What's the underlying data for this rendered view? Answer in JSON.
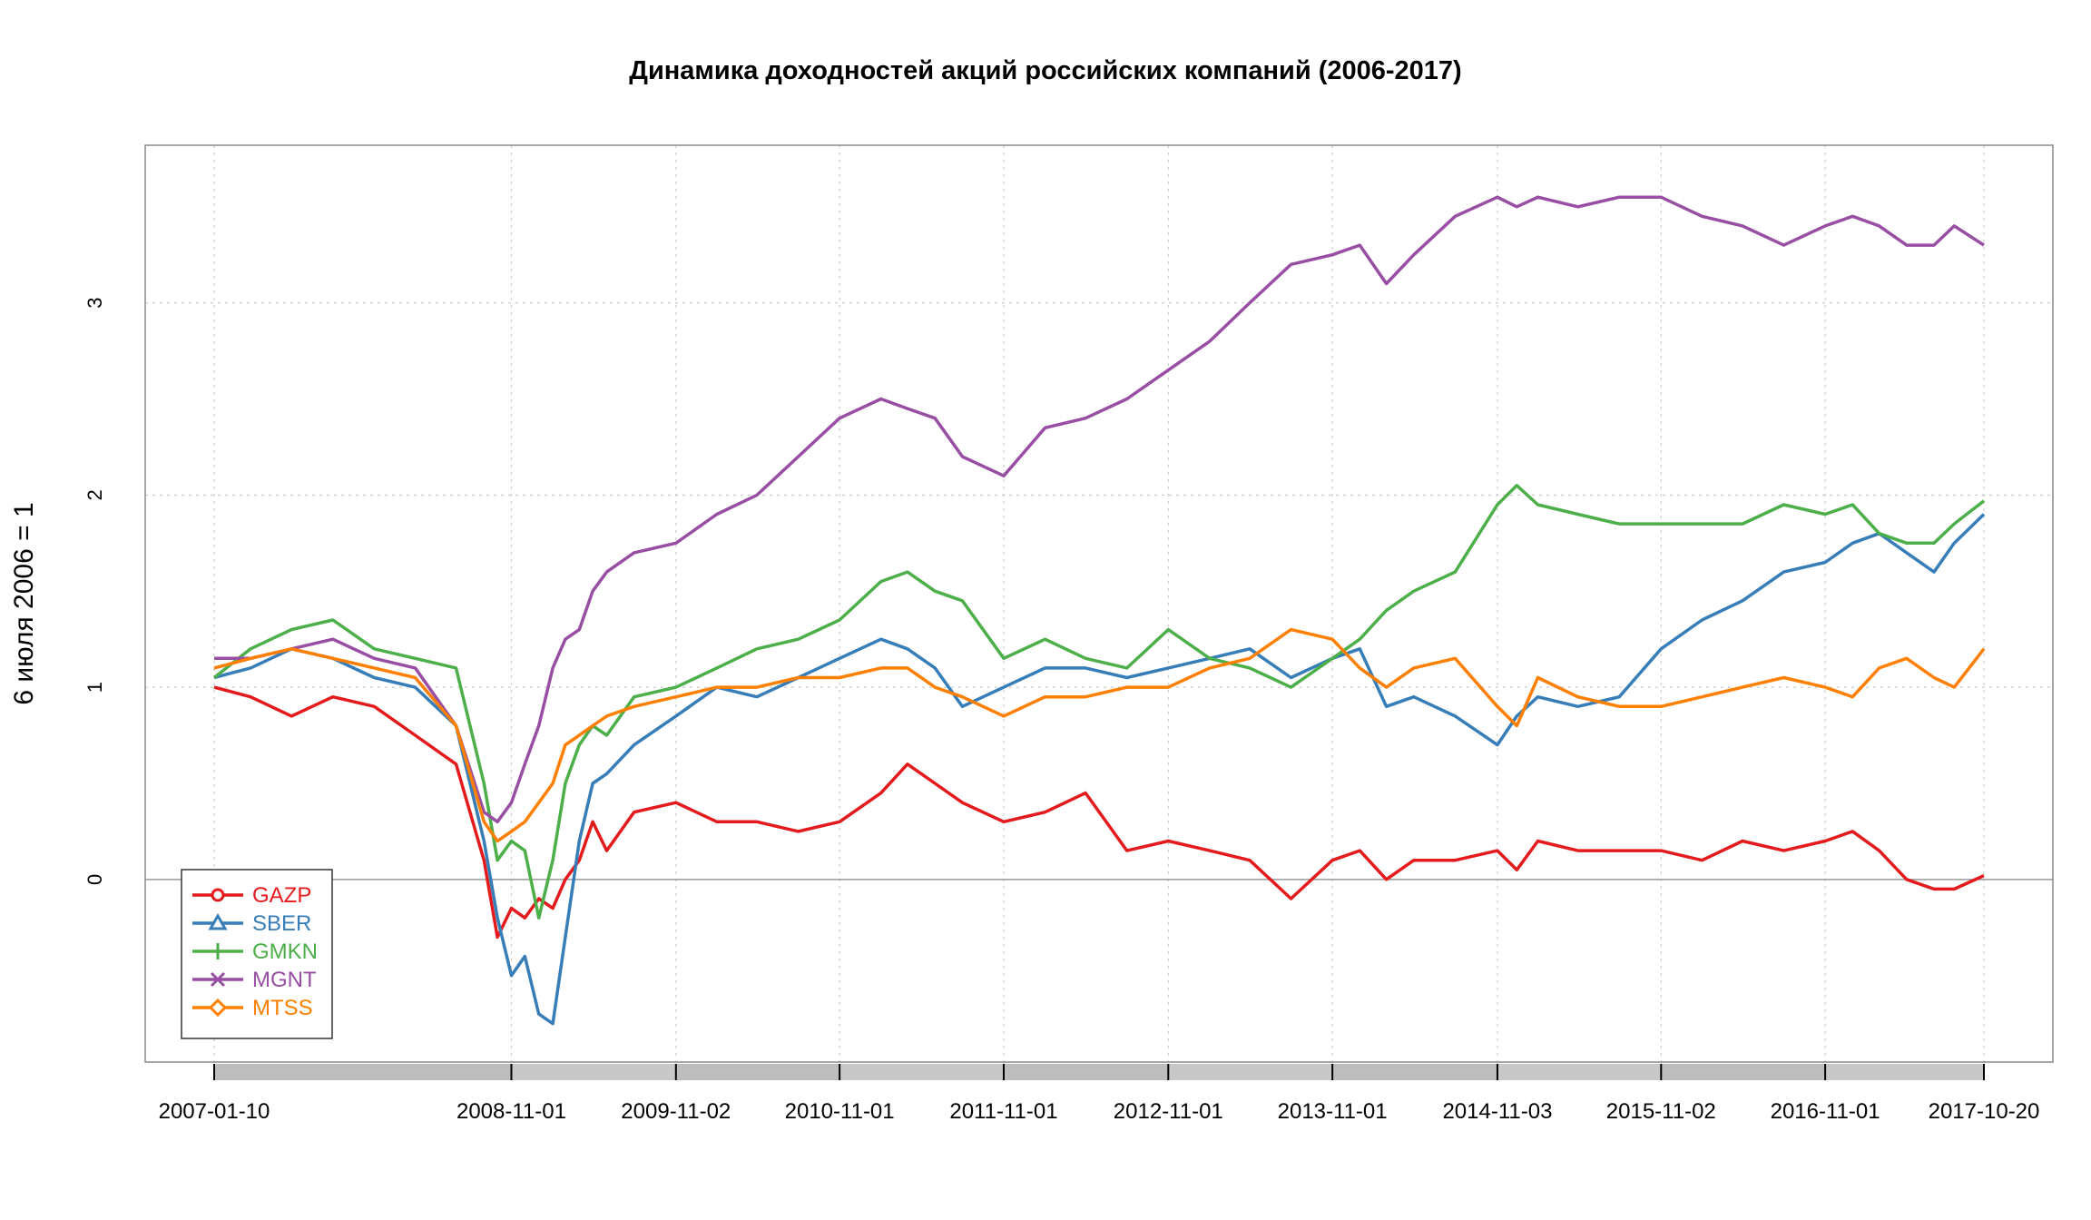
{
  "chart_data": {
    "type": "line",
    "title": "Динамика доходностей акций российских компаний (2006-2017)",
    "xlabel": "",
    "ylabel": "6 июля 2006  = 1",
    "x_tick_labels": [
      "2007-01-10",
      "2008-11-01",
      "2009-11-02",
      "2010-11-01",
      "2011-11-01",
      "2012-11-01",
      "2013-11-01",
      "2014-11-03",
      "2015-11-02",
      "2016-11-01",
      "2017-10-20"
    ],
    "y_ticks": [
      0,
      1,
      2,
      3
    ],
    "ylim": [
      -0.95,
      3.82
    ],
    "xlim": [
      "2007-01-10",
      "2017-10-20"
    ],
    "grid": true,
    "legend_position": "bottom-left",
    "x": [
      "2007-01-10",
      "2007-04-01",
      "2007-07-01",
      "2007-10-01",
      "2008-01-01",
      "2008-04-01",
      "2008-07-01",
      "2008-09-01",
      "2008-10-01",
      "2008-11-01",
      "2008-12-01",
      "2009-01-01",
      "2009-02-01",
      "2009-03-01",
      "2009-04-01",
      "2009-05-01",
      "2009-06-01",
      "2009-08-01",
      "2009-11-02",
      "2010-02-01",
      "2010-05-01",
      "2010-08-01",
      "2010-11-01",
      "2011-02-01",
      "2011-04-01",
      "2011-06-01",
      "2011-08-01",
      "2011-11-01",
      "2012-02-01",
      "2012-05-01",
      "2012-08-01",
      "2012-11-01",
      "2013-02-01",
      "2013-05-01",
      "2013-08-01",
      "2013-11-01",
      "2014-01-01",
      "2014-03-01",
      "2014-05-01",
      "2014-08-01",
      "2014-11-03",
      "2014-12-16",
      "2015-02-01",
      "2015-05-01",
      "2015-08-01",
      "2015-11-02",
      "2016-02-01",
      "2016-05-01",
      "2016-08-01",
      "2016-11-01",
      "2017-01-01",
      "2017-03-01",
      "2017-05-01",
      "2017-07-01",
      "2017-08-15",
      "2017-10-20"
    ],
    "series": [
      {
        "name": "GAZP",
        "color": "#e41a1c",
        "marker": "circle",
        "values": [
          1.0,
          0.95,
          0.85,
          0.95,
          0.9,
          0.75,
          0.6,
          0.1,
          -0.3,
          -0.15,
          -0.2,
          -0.1,
          -0.15,
          0.0,
          0.1,
          0.3,
          0.15,
          0.35,
          0.4,
          0.3,
          0.3,
          0.25,
          0.3,
          0.45,
          0.6,
          0.5,
          0.4,
          0.3,
          0.35,
          0.45,
          0.15,
          0.2,
          0.15,
          0.1,
          -0.1,
          0.1,
          0.15,
          0.0,
          0.1,
          0.1,
          0.15,
          0.05,
          0.2,
          0.15,
          0.15,
          0.15,
          0.1,
          0.2,
          0.15,
          0.2,
          0.25,
          0.15,
          0.0,
          -0.05,
          -0.05,
          0.02
        ]
      },
      {
        "name": "SBER",
        "color": "#377eb8",
        "marker": "triangle",
        "values": [
          1.05,
          1.1,
          1.2,
          1.15,
          1.05,
          1.0,
          0.8,
          0.2,
          -0.2,
          -0.5,
          -0.4,
          -0.7,
          -0.75,
          -0.3,
          0.2,
          0.5,
          0.55,
          0.7,
          0.85,
          1.0,
          0.95,
          1.05,
          1.15,
          1.25,
          1.2,
          1.1,
          0.9,
          1.0,
          1.1,
          1.1,
          1.05,
          1.1,
          1.15,
          1.2,
          1.05,
          1.15,
          1.2,
          0.9,
          0.95,
          0.85,
          0.7,
          0.85,
          0.95,
          0.9,
          0.95,
          1.2,
          1.35,
          1.45,
          1.6,
          1.65,
          1.75,
          1.8,
          1.7,
          1.6,
          1.75,
          1.9
        ]
      },
      {
        "name": "GMKN",
        "color": "#4daf4a",
        "marker": "plus",
        "values": [
          1.05,
          1.2,
          1.3,
          1.35,
          1.2,
          1.15,
          1.1,
          0.5,
          0.1,
          0.2,
          0.15,
          -0.2,
          0.1,
          0.5,
          0.7,
          0.8,
          0.75,
          0.95,
          1.0,
          1.1,
          1.2,
          1.25,
          1.35,
          1.55,
          1.6,
          1.5,
          1.45,
          1.15,
          1.25,
          1.15,
          1.1,
          1.3,
          1.15,
          1.1,
          1.0,
          1.15,
          1.25,
          1.4,
          1.5,
          1.6,
          1.95,
          2.05,
          1.95,
          1.9,
          1.85,
          1.85,
          1.85,
          1.85,
          1.95,
          1.9,
          1.95,
          1.8,
          1.75,
          1.75,
          1.85,
          1.97
        ]
      },
      {
        "name": "MGNT",
        "color": "#984ea3",
        "marker": "x",
        "values": [
          1.15,
          1.15,
          1.2,
          1.25,
          1.15,
          1.1,
          0.8,
          0.35,
          0.3,
          0.4,
          0.6,
          0.8,
          1.1,
          1.25,
          1.3,
          1.5,
          1.6,
          1.7,
          1.75,
          1.9,
          2.0,
          2.2,
          2.4,
          2.5,
          2.45,
          2.4,
          2.2,
          2.1,
          2.35,
          2.4,
          2.5,
          2.65,
          2.8,
          3.0,
          3.2,
          3.25,
          3.3,
          3.1,
          3.25,
          3.45,
          3.55,
          3.5,
          3.55,
          3.5,
          3.55,
          3.55,
          3.45,
          3.4,
          3.3,
          3.4,
          3.45,
          3.4,
          3.3,
          3.3,
          3.4,
          3.3
        ]
      },
      {
        "name": "MTSS",
        "color": "#ff7f00",
        "marker": "diamond",
        "values": [
          1.1,
          1.15,
          1.2,
          1.15,
          1.1,
          1.05,
          0.8,
          0.3,
          0.2,
          0.25,
          0.3,
          0.4,
          0.5,
          0.7,
          0.75,
          0.8,
          0.85,
          0.9,
          0.95,
          1.0,
          1.0,
          1.05,
          1.05,
          1.1,
          1.1,
          1.0,
          0.95,
          0.85,
          0.95,
          0.95,
          1.0,
          1.0,
          1.1,
          1.15,
          1.3,
          1.25,
          1.1,
          1.0,
          1.1,
          1.15,
          0.9,
          0.8,
          1.05,
          0.95,
          0.9,
          0.9,
          0.95,
          1.0,
          1.05,
          1.0,
          0.95,
          1.1,
          1.15,
          1.05,
          1.0,
          1.2
        ]
      }
    ]
  }
}
